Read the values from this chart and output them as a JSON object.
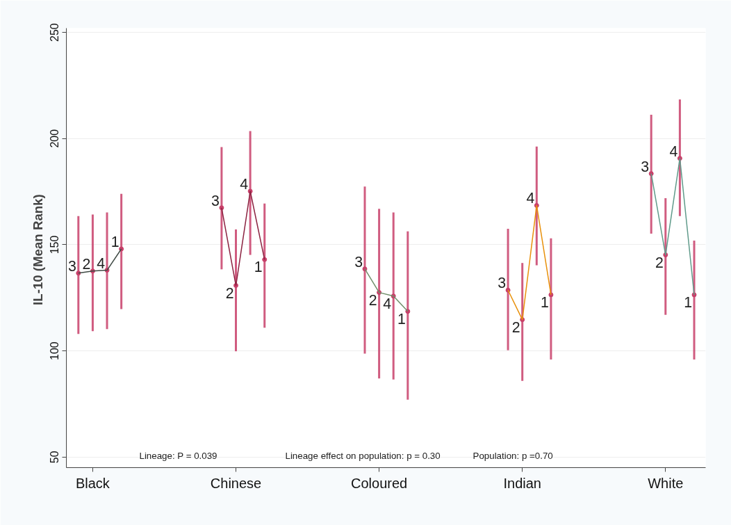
{
  "chart_data": {
    "type": "scatter",
    "ylabel": "IL-10  (Mean Rank)",
    "categories": [
      null,
      "Black",
      null,
      null,
      null,
      null,
      null,
      null,
      null,
      null,
      null,
      "Chinese",
      null,
      null,
      null,
      null,
      null,
      null,
      null,
      null,
      null,
      "Coloured",
      null,
      null,
      null,
      null,
      null,
      null,
      null,
      null,
      null,
      "Indian",
      null,
      null,
      null,
      null,
      null,
      null,
      null,
      null,
      null,
      "White",
      null,
      null
    ],
    "ylim": [
      45,
      252
    ],
    "yticks": [
      50,
      100,
      150,
      200,
      250
    ],
    "grid": "y",
    "line_style": "solid",
    "series": [
      {
        "name": "3",
        "color": "#c8406a",
        "marker": "circle",
        "values": [
          136.6,
          null,
          null,
          null,
          null,
          null,
          null,
          null,
          null,
          null,
          167.4,
          null,
          null,
          null,
          null,
          null,
          null,
          null,
          null,
          null,
          138.6,
          null,
          null,
          null,
          null,
          null,
          null,
          null,
          null,
          null,
          128.6,
          null,
          null,
          null,
          null,
          null,
          null,
          null,
          null,
          null,
          183.5,
          null,
          null,
          null
        ],
        "errors": [
          [
            108,
            163.5
          ],
          null,
          null,
          null,
          null,
          null,
          null,
          null,
          null,
          null,
          [
            138.4,
            196
          ],
          null,
          null,
          null,
          null,
          null,
          null,
          null,
          null,
          null,
          [
            98.7,
            177.4
          ],
          null,
          null,
          null,
          null,
          null,
          null,
          null,
          null,
          null,
          [
            100.3,
            157.5
          ],
          null,
          null,
          null,
          null,
          null,
          null,
          null,
          null,
          null,
          [
            155.2,
            211.2
          ],
          null,
          null,
          null
        ]
      },
      {
        "name": "2",
        "color": "#c8406a",
        "marker": "circle",
        "values": [
          null,
          137.6,
          null,
          null,
          null,
          null,
          null,
          null,
          null,
          null,
          null,
          130.8,
          null,
          null,
          null,
          null,
          null,
          null,
          null,
          null,
          null,
          127.5,
          null,
          null,
          null,
          null,
          null,
          null,
          null,
          null,
          null,
          114.7,
          null,
          null,
          null,
          null,
          null,
          null,
          null,
          null,
          null,
          145.2,
          null,
          null
        ],
        "errors": [
          null,
          [
            109.3,
            164.2
          ],
          null,
          null,
          null,
          null,
          null,
          null,
          null,
          null,
          null,
          [
            99.8,
            157.2
          ],
          null,
          null,
          null,
          null,
          null,
          null,
          null,
          null,
          null,
          [
            87,
            166.9
          ],
          null,
          null,
          null,
          null,
          null,
          null,
          null,
          null,
          null,
          [
            85.9,
            141.4
          ],
          null,
          null,
          null,
          null,
          null,
          null,
          null,
          null,
          null,
          [
            117,
            171.9
          ],
          null,
          null
        ]
      },
      {
        "name": "4",
        "color": "#c8406a",
        "marker": "circle",
        "values": [
          null,
          null,
          138,
          null,
          null,
          null,
          null,
          null,
          null,
          null,
          null,
          null,
          175.2,
          null,
          null,
          null,
          null,
          null,
          null,
          null,
          null,
          null,
          125.8,
          null,
          null,
          null,
          null,
          null,
          null,
          null,
          null,
          null,
          168.5,
          null,
          null,
          null,
          null,
          null,
          null,
          null,
          null,
          null,
          190.7,
          null
        ],
        "errors": [
          null,
          null,
          [
            110.3,
            165.2
          ],
          null,
          null,
          null,
          null,
          null,
          null,
          null,
          null,
          null,
          [
            145.2,
            203.5
          ],
          null,
          null,
          null,
          null,
          null,
          null,
          null,
          null,
          null,
          [
            86.5,
            165.2
          ],
          null,
          null,
          null,
          null,
          null,
          null,
          null,
          null,
          null,
          [
            140.3,
            196.2
          ],
          null,
          null,
          null,
          null,
          null,
          null,
          null,
          null,
          null,
          [
            163.5,
            218.4
          ],
          null
        ]
      },
      {
        "name": "1",
        "color": "#c8406a",
        "marker": "circle",
        "values": [
          null,
          null,
          null,
          148,
          null,
          null,
          null,
          null,
          null,
          null,
          null,
          null,
          null,
          143,
          null,
          null,
          null,
          null,
          null,
          null,
          null,
          null,
          null,
          118.6,
          null,
          null,
          null,
          null,
          null,
          null,
          null,
          null,
          null,
          126.4,
          null,
          null,
          null,
          null,
          null,
          null,
          null,
          null,
          null,
          126.4
        ],
        "errors": [
          null,
          null,
          null,
          [
            119.7,
            174
          ],
          null,
          null,
          null,
          null,
          null,
          null,
          null,
          null,
          null,
          [
            110.9,
            169.4
          ],
          null,
          null,
          null,
          null,
          null,
          null,
          null,
          null,
          null,
          [
            77,
            156.3
          ],
          null,
          null,
          null,
          null,
          null,
          null,
          null,
          null,
          null,
          [
            95.9,
            153
          ],
          null,
          null,
          null,
          null,
          null,
          null,
          null,
          null,
          null,
          [
            95.9,
            151.9
          ]
        ]
      },
      {
        "type": "line",
        "color": "#3f4a44",
        "values": [
          136.6,
          137.6,
          138,
          148,
          null,
          null,
          null,
          null,
          null,
          null,
          null,
          null,
          null,
          null,
          null,
          null,
          null,
          null,
          null,
          null,
          null,
          null,
          null,
          null,
          null,
          null,
          null,
          null,
          null,
          null,
          null,
          null,
          null,
          null,
          null,
          null,
          null,
          null,
          null,
          null,
          null,
          null,
          null,
          null
        ]
      },
      {
        "type": "line",
        "color": "#8b2240",
        "values": [
          null,
          null,
          null,
          null,
          null,
          null,
          null,
          null,
          null,
          null,
          167.4,
          130.8,
          175.2,
          143,
          null,
          null,
          null,
          null,
          null,
          null,
          null,
          null,
          null,
          null,
          null,
          null,
          null,
          null,
          null,
          null,
          null,
          null,
          null,
          null,
          null,
          null,
          null,
          null,
          null,
          null,
          null,
          null,
          null,
          null
        ]
      },
      {
        "type": "line",
        "color": "#6f8f6a",
        "values": [
          null,
          null,
          null,
          null,
          null,
          null,
          null,
          null,
          null,
          null,
          null,
          null,
          null,
          null,
          null,
          null,
          null,
          null,
          null,
          null,
          138.6,
          127.5,
          125.8,
          118.6,
          null,
          null,
          null,
          null,
          null,
          null,
          null,
          null,
          null,
          null,
          null,
          null,
          null,
          null,
          null,
          null,
          null,
          null,
          null,
          null
        ]
      },
      {
        "type": "line",
        "color": "#e8900a",
        "values": [
          null,
          null,
          null,
          null,
          null,
          null,
          null,
          null,
          null,
          null,
          null,
          null,
          null,
          null,
          null,
          null,
          null,
          null,
          null,
          null,
          null,
          null,
          null,
          null,
          null,
          null,
          null,
          null,
          null,
          null,
          128.6,
          114.7,
          168.5,
          126.4,
          null,
          null,
          null,
          null,
          null,
          null,
          null,
          null,
          null,
          null
        ]
      },
      {
        "type": "line",
        "color": "#5f9a8a",
        "values": [
          null,
          null,
          null,
          null,
          null,
          null,
          null,
          null,
          null,
          null,
          null,
          null,
          null,
          null,
          null,
          null,
          null,
          null,
          null,
          null,
          null,
          null,
          null,
          null,
          null,
          null,
          null,
          null,
          null,
          null,
          null,
          null,
          null,
          null,
          null,
          null,
          null,
          null,
          null,
          null,
          183.5,
          145.2,
          190.7,
          126.4
        ]
      }
    ],
    "annotations": [
      "Lineage: P = 0.039",
      "Lineage effect on population: p = 0.30",
      "Population: p =0.70"
    ]
  }
}
